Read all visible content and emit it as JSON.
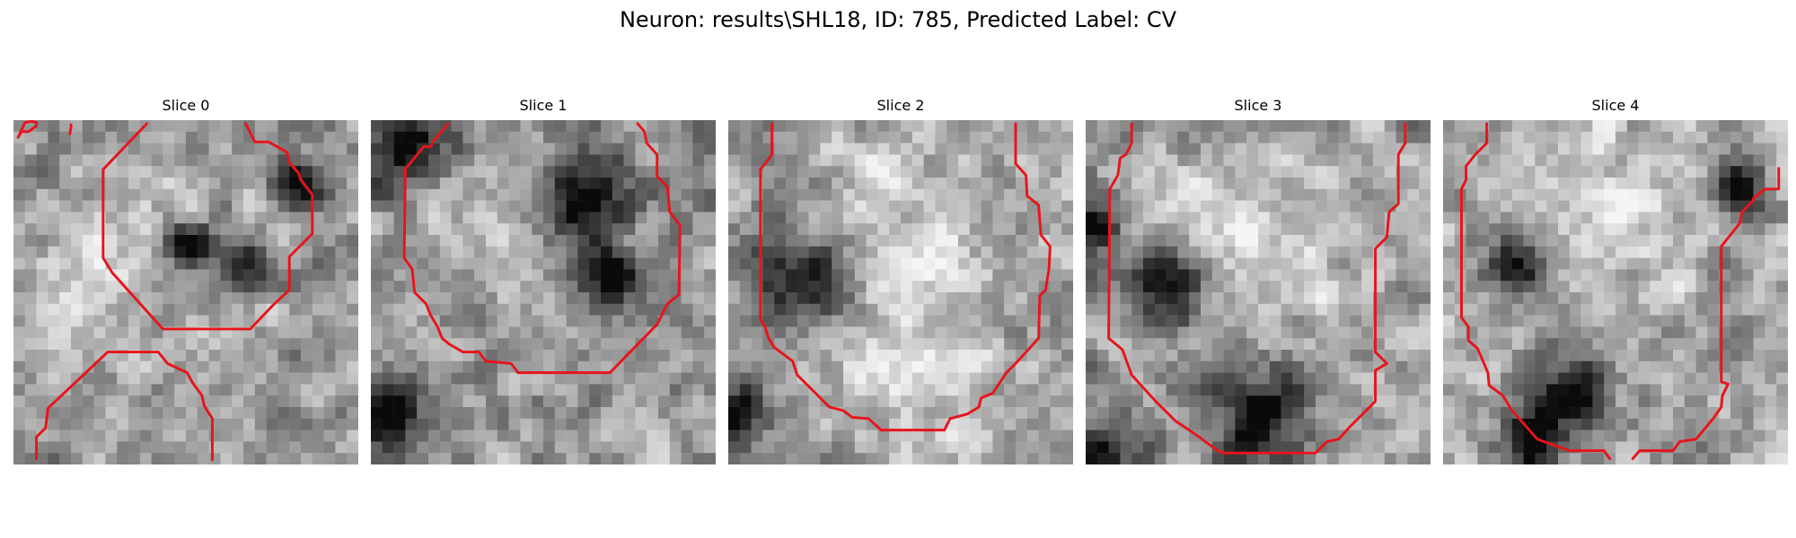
{
  "title": "Neuron: results\\SHL18, ID: 785, Predicted Label: CV",
  "contour_color": "#e8141b",
  "panels": [
    {
      "label": "Slice 0",
      "base": 155,
      "seed": 11,
      "dark_spots": [
        [
          24.3,
          5.0,
          1.6
        ],
        [
          14.6,
          10.4,
          1.8
        ],
        [
          20.0,
          12.0,
          1.4
        ]
      ],
      "light_spots": [
        [
          7.0,
          14.0,
          4.0
        ],
        [
          12.0,
          7.0,
          3.0
        ]
      ]
    },
    {
      "label": "Slice 1",
      "base": 150,
      "seed": 23,
      "dark_spots": [
        [
          3.0,
          2.0,
          2.6
        ],
        [
          18.0,
          6.0,
          2.6
        ],
        [
          20.0,
          13.0,
          1.8
        ],
        [
          1.0,
          25.0,
          2.0
        ]
      ],
      "light_spots": [
        [
          9.0,
          8.0,
          4.0
        ]
      ]
    },
    {
      "label": "Slice 2",
      "base": 160,
      "seed": 37,
      "dark_spots": [
        [
          5.5,
          13.2,
          3.4
        ],
        [
          0.5,
          25.0,
          1.8
        ]
      ],
      "light_spots": [
        [
          14.0,
          9.0,
          6.0
        ],
        [
          14.0,
          20.0,
          5.0
        ]
      ]
    },
    {
      "label": "Slice 3",
      "base": 158,
      "seed": 49,
      "dark_spots": [
        [
          6.5,
          14.0,
          2.8
        ],
        [
          1.0,
          28.0,
          2.0
        ],
        [
          15.0,
          25.0,
          3.0
        ],
        [
          0.0,
          9.0,
          1.5
        ]
      ],
      "light_spots": [
        [
          13.0,
          9.0,
          6.0
        ]
      ]
    },
    {
      "label": "Slice 4",
      "base": 160,
      "seed": 61,
      "dark_spots": [
        [
          10.5,
          23.5,
          2.4
        ],
        [
          7.0,
          27.5,
          1.8
        ],
        [
          25.0,
          5.0,
          1.6
        ],
        [
          6.0,
          12.0,
          2.0
        ]
      ],
      "light_spots": [
        [
          13.0,
          8.0,
          6.0
        ]
      ]
    }
  ]
}
